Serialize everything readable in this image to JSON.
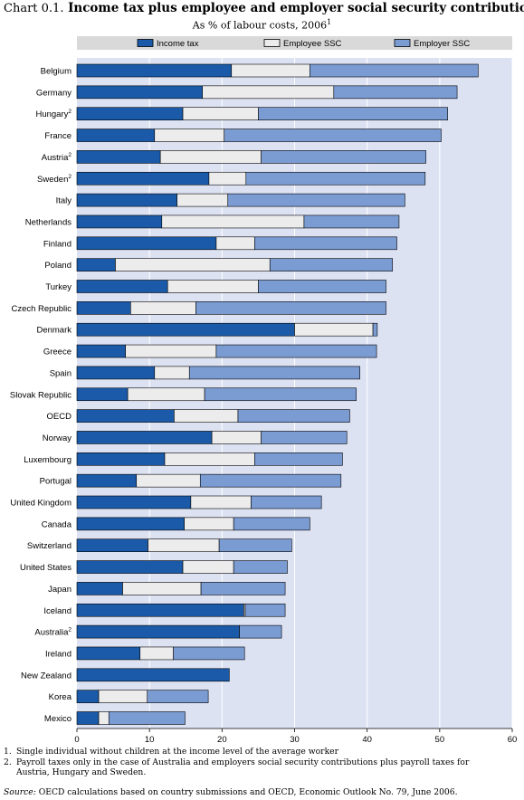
{
  "header": {
    "chart_number": "Chart 0.1.",
    "title": "Income tax plus employee and employer social security contributions",
    "subtitle": "As % of labour costs, 2006",
    "subtitle_note": "1"
  },
  "footnotes": {
    "note1_num": "1.",
    "note1_text": "Single individual without children at the income level of the average worker",
    "note2_num": "2.",
    "note2_text_line1": "Payroll taxes only in the case of Australia and employers social security contributions plus payroll taxes for",
    "note2_text_line2": "Austria, Hungary and Sweden.",
    "source_label": "Source:",
    "source_text": "OECD calculations based on country submissions and OECD, Economic Outlook No. 79, June 2006."
  },
  "colors": {
    "income_tax": "#1a5aa8",
    "employee_ssc": "#ececec",
    "employer_ssc": "#7b9cd3",
    "plot_bg": "#dde2f3",
    "grid": "#ffffff",
    "legend_bg": "#d9d9d9"
  },
  "chart_data": {
    "type": "bar",
    "orientation": "horizontal",
    "stacked": true,
    "categories": [
      "Belgium",
      "Germany",
      "Hungary",
      "France",
      "Austria",
      "Sweden",
      "Italy",
      "Netherlands",
      "Finland",
      "Poland",
      "Turkey",
      "Czech Republic",
      "Denmark",
      "Greece",
      "Spain",
      "Slovak Republic",
      "OECD",
      "Norway",
      "Luxembourg",
      "Portugal",
      "United Kingdom",
      "Canada",
      "Switzerland",
      "United States",
      "Japan",
      "Iceland",
      "Australia",
      "Ireland",
      "New Zealand",
      "Korea",
      "Mexico"
    ],
    "category_superscripts": [
      "",
      "",
      "2",
      "",
      "2",
      "2",
      "",
      "",
      "",
      "",
      "",
      "",
      "",
      "",
      "",
      "",
      "",
      "",
      "",
      "",
      "",
      "",
      "",
      "",
      "",
      "",
      "2",
      "",
      "",
      "",
      ""
    ],
    "series": [
      {
        "name": "Income tax",
        "values": [
          21.3,
          17.3,
          14.6,
          10.7,
          11.5,
          18.2,
          13.8,
          11.7,
          19.2,
          5.3,
          12.5,
          7.4,
          30.0,
          6.7,
          10.7,
          7.0,
          13.4,
          18.6,
          12.1,
          8.2,
          15.7,
          14.8,
          9.8,
          14.6,
          6.3,
          23.0,
          22.4,
          8.7,
          21.0,
          3.0,
          3.0
        ]
      },
      {
        "name": "Employee SSC",
        "values": [
          10.8,
          18.1,
          10.4,
          9.6,
          13.9,
          5.1,
          7.0,
          19.6,
          5.3,
          21.3,
          12.5,
          9.0,
          10.8,
          12.5,
          4.8,
          10.6,
          8.8,
          6.8,
          12.4,
          8.8,
          8.3,
          6.8,
          9.8,
          7.0,
          10.8,
          0.2,
          0.0,
          4.6,
          0.0,
          6.7,
          1.4
        ]
      },
      {
        "name": "Employer SSC",
        "values": [
          23.2,
          17.0,
          26.1,
          29.9,
          22.7,
          24.7,
          24.4,
          13.1,
          19.6,
          16.9,
          17.6,
          26.2,
          0.6,
          22.1,
          23.5,
          20.9,
          15.4,
          11.8,
          12.1,
          19.4,
          9.7,
          10.5,
          10.0,
          7.4,
          11.6,
          5.5,
          5.8,
          9.8,
          0.0,
          8.4,
          10.5
        ]
      }
    ],
    "xlim": [
      0,
      60
    ],
    "xticks": [
      "0",
      "10",
      "20",
      "30",
      "40",
      "50",
      "60"
    ],
    "grid": true,
    "legend_position": "top"
  }
}
